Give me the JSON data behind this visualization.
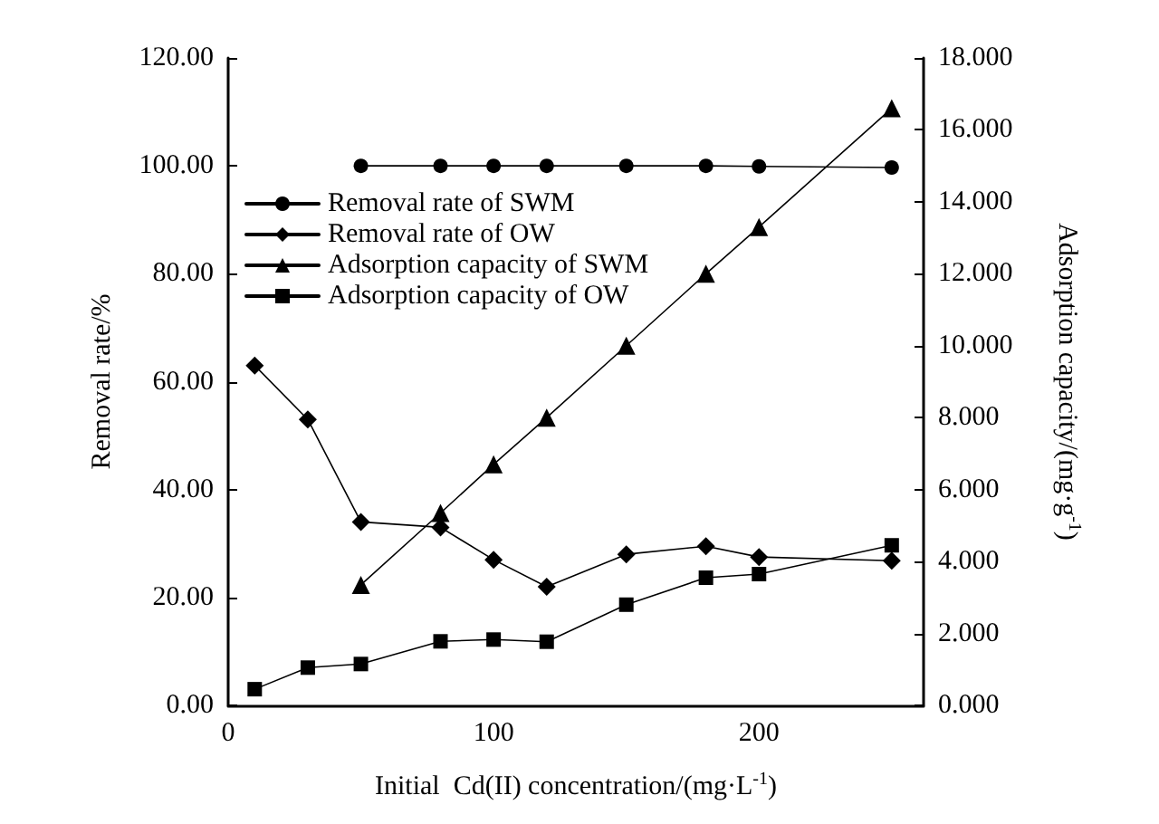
{
  "chart_data": {
    "type": "line",
    "xlabel": "Initial  Cd(II) concentration/(mg·L$^{-1}$)",
    "ylabel": "Removal rate/%",
    "y2label": "Adsorption capacity/(mg·g$^{-1}$)",
    "xlim": [
      0,
      262
    ],
    "xticks": [
      0,
      100,
      200
    ],
    "ylim": [
      0,
      120
    ],
    "yticks": [
      {
        "value": 0,
        "label": "0.00"
      },
      {
        "value": 20,
        "label": "20.00"
      },
      {
        "value": 40,
        "label": "40.00"
      },
      {
        "value": 60,
        "label": "60.00"
      },
      {
        "value": 80,
        "label": "80.00"
      },
      {
        "value": 100,
        "label": "100.00"
      },
      {
        "value": 120,
        "label": "120.00"
      }
    ],
    "y2lim": [
      0,
      18
    ],
    "y2ticks": [
      {
        "value": 0,
        "label": "0.000"
      },
      {
        "value": 2,
        "label": "2.000"
      },
      {
        "value": 4,
        "label": "4.000"
      },
      {
        "value": 6,
        "label": "6.000"
      },
      {
        "value": 8,
        "label": "8.000"
      },
      {
        "value": 10,
        "label": "10.000"
      },
      {
        "value": 12,
        "label": "12.000"
      },
      {
        "value": 14,
        "label": "14.000"
      },
      {
        "value": 16,
        "label": "16.000"
      },
      {
        "value": 18,
        "label": "18.000"
      }
    ],
    "legend": "top left",
    "grid": false,
    "series": [
      {
        "name": "Removal rate of SWM",
        "color": "#000000",
        "marker": "circle",
        "x": [
          50,
          80,
          100,
          120,
          150,
          180,
          200,
          250
        ],
        "values": [
          100,
          100,
          100,
          100,
          100,
          100,
          99.9,
          99.7
        ]
      },
      {
        "name": "Removal rate of OW",
        "color": "#000000",
        "marker": "diamond",
        "x": [
          10,
          30,
          50,
          80,
          100,
          120,
          150,
          180,
          200,
          250
        ],
        "values": [
          63,
          53,
          34,
          33,
          27,
          22,
          28,
          29.5,
          27.5,
          26.8
        ]
      },
      {
        "name": "Adsorption capacity of SWM",
        "color": "#000000",
        "marker": "triangle",
        "axis": "y2",
        "x": [
          50,
          80,
          100,
          120,
          150,
          180,
          200,
          250
        ],
        "values": [
          3.35,
          5.35,
          6.7,
          8.0,
          10.0,
          12.0,
          13.3,
          16.6
        ]
      },
      {
        "name": "Adsorption capacity of OW",
        "color": "#000000",
        "marker": "square",
        "axis": "y2",
        "x": [
          10,
          30,
          50,
          80,
          100,
          120,
          150,
          180,
          200,
          250
        ],
        "values": [
          0.45,
          1.05,
          1.15,
          1.78,
          1.83,
          1.77,
          2.8,
          3.55,
          3.65,
          4.45
        ]
      }
    ]
  }
}
